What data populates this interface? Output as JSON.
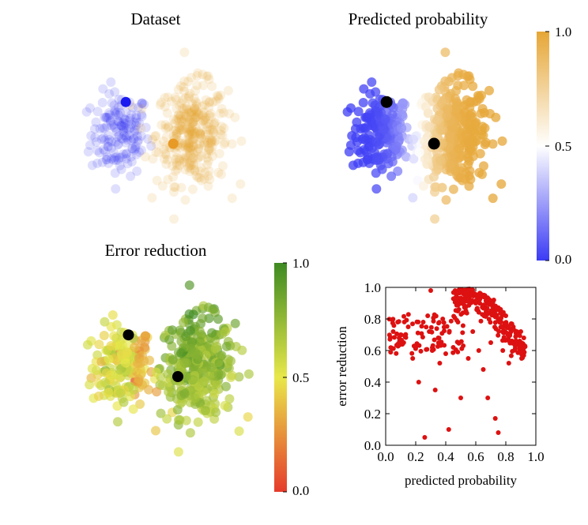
{
  "chart_data": [
    {
      "type": "scatter",
      "title": "Dataset",
      "colors": {
        "class_low": "#3b3bf5",
        "class_high": "#e6a636"
      },
      "clusters": [
        {
          "class": "low",
          "cx": 0.3,
          "cy": 0.5,
          "spread_x": 0.14,
          "spread_y": 0.2,
          "n": 160
        },
        {
          "class": "high",
          "cx": 0.68,
          "cy": 0.5,
          "spread_x": 0.17,
          "spread_y": 0.24,
          "n": 340
        }
      ],
      "highlighted_points": [
        {
          "class": "low",
          "x": 0.33,
          "y": 0.67
        },
        {
          "class": "high",
          "x": 0.58,
          "y": 0.45
        }
      ],
      "xlabel": "",
      "ylabel": ""
    },
    {
      "type": "scatter",
      "title": "Predicted probability",
      "colorbar": {
        "min": 0.0,
        "max": 1.0,
        "ticks": [
          "0.0",
          "0.5",
          "1.0"
        ],
        "colors": [
          "#3b3bf5",
          "#ffffff",
          "#e6a636"
        ]
      },
      "highlighted_points": [
        {
          "x": 0.33,
          "y": 0.67,
          "color": "#000000"
        },
        {
          "x": 0.58,
          "y": 0.45,
          "color": "#000000"
        }
      ],
      "xlabel": "",
      "ylabel": ""
    },
    {
      "type": "scatter",
      "title": "Error reduction",
      "colorbar": {
        "min": 0.0,
        "max": 1.0,
        "ticks": [
          "0.0",
          "0.5",
          "1.0"
        ],
        "colors": [
          "#e63b2b",
          "#e8e84a",
          "#3e8a22"
        ]
      },
      "highlighted_points": [
        {
          "x": 0.33,
          "y": 0.67,
          "color": "#000000"
        },
        {
          "x": 0.58,
          "y": 0.45,
          "color": "#000000"
        }
      ],
      "xlabel": "",
      "ylabel": ""
    },
    {
      "type": "scatter",
      "title": "",
      "xlabel": "predicted probability",
      "ylabel": "error reduction",
      "xlim": [
        0.0,
        1.0
      ],
      "ylim": [
        0.0,
        1.0
      ],
      "xticks": [
        "0.0",
        "0.2",
        "0.4",
        "0.6",
        "0.8",
        "1.0"
      ],
      "yticks": [
        "0.0",
        "0.2",
        "0.4",
        "0.6",
        "0.8",
        "1.0"
      ],
      "point_color": "#dd1111",
      "sample_points": [
        [
          0.05,
          0.72
        ],
        [
          0.08,
          0.78
        ],
        [
          0.1,
          0.7
        ],
        [
          0.12,
          0.65
        ],
        [
          0.15,
          0.75
        ],
        [
          0.18,
          0.55
        ],
        [
          0.2,
          0.62
        ],
        [
          0.22,
          0.4
        ],
        [
          0.25,
          0.78
        ],
        [
          0.26,
          0.05
        ],
        [
          0.28,
          0.82
        ],
        [
          0.29,
          0.72
        ],
        [
          0.3,
          0.98
        ],
        [
          0.31,
          0.6
        ],
        [
          0.33,
          0.35
        ],
        [
          0.35,
          0.68
        ],
        [
          0.36,
          0.52
        ],
        [
          0.38,
          0.8
        ],
        [
          0.4,
          0.58
        ],
        [
          0.42,
          0.1
        ],
        [
          0.45,
          0.62
        ],
        [
          0.48,
          0.85
        ],
        [
          0.5,
          0.3
        ],
        [
          0.52,
          0.98
        ],
        [
          0.55,
          0.55
        ],
        [
          0.58,
          0.72
        ],
        [
          0.6,
          0.9
        ],
        [
          0.62,
          0.6
        ],
        [
          0.65,
          0.48
        ],
        [
          0.68,
          0.3
        ],
        [
          0.7,
          0.65
        ],
        [
          0.72,
          0.92
        ],
        [
          0.73,
          0.17
        ],
        [
          0.75,
          0.08
        ],
        [
          0.78,
          0.6
        ],
        [
          0.8,
          0.82
        ],
        [
          0.82,
          0.52
        ],
        [
          0.85,
          0.75
        ],
        [
          0.88,
          0.7
        ],
        [
          0.9,
          0.72
        ],
        [
          0.92,
          0.68
        ]
      ]
    }
  ]
}
